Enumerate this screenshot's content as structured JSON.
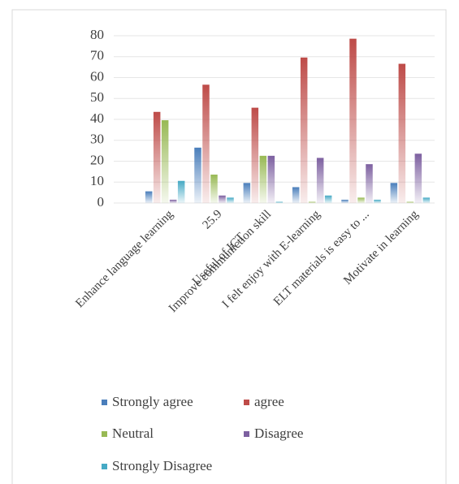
{
  "chart_data": {
    "type": "bar",
    "categories": [
      "Enhance language learning",
      [
        "25.9",
        "Useful of ICT"
      ],
      "Improve communiction skill",
      "I felt enjoy with E-learning",
      "ELT materials is easy to ...",
      "Motivate in learning"
    ],
    "series": [
      {
        "name": "Strongly agree",
        "color": "#4a7ebb",
        "values": [
          5,
          25.9,
          9,
          7,
          1,
          9
        ]
      },
      {
        "name": "agree",
        "color": "#be4b48",
        "values": [
          43,
          56,
          45,
          69,
          78,
          66
        ]
      },
      {
        "name": "Neutral",
        "color": "#98b954",
        "values": [
          39,
          13,
          22,
          0,
          2,
          0
        ]
      },
      {
        "name": "Disagree",
        "color": "#7d60a0",
        "values": [
          1,
          3,
          22,
          21,
          18,
          23
        ]
      },
      {
        "name": "Strongly Disagree",
        "color": "#46aac5",
        "values": [
          10,
          2,
          0,
          3,
          1,
          2
        ]
      }
    ],
    "ylim": [
      0,
      80
    ],
    "yticks": [
      0,
      10,
      20,
      30,
      40,
      50,
      60,
      70,
      80
    ],
    "grid": true
  }
}
